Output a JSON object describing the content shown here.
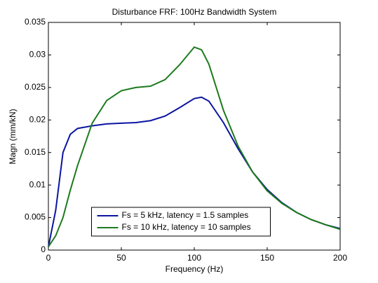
{
  "chart_data": {
    "type": "line",
    "title": "Disturbance FRF: 100Hz Bandwidth System",
    "x_label": "Frequency (Hz)",
    "y_label": "Magn (mm/kN)",
    "x": [
      0,
      5,
      10,
      15,
      20,
      30,
      40,
      50,
      60,
      70,
      80,
      90,
      100,
      105,
      110,
      120,
      130,
      140,
      150,
      160,
      170,
      180,
      190,
      200
    ],
    "series": [
      {
        "name": "Fs = 5 kHz, latency = 1.5 samples",
        "color": "#0a14a0",
        "values": [
          0.0005,
          0.0061,
          0.015,
          0.0178,
          0.0187,
          0.0191,
          0.0194,
          0.0195,
          0.0196,
          0.0199,
          0.0206,
          0.0219,
          0.0233,
          0.0235,
          0.0229,
          0.0196,
          0.0156,
          0.012,
          0.0093,
          0.0073,
          0.0058,
          0.0047,
          0.0039,
          0.0033
        ]
      },
      {
        "name": "Fs = 10 kHz, latency = 10 samples",
        "color": "#1d7a1d",
        "values": [
          0.0005,
          0.0022,
          0.005,
          0.0092,
          0.013,
          0.0195,
          0.023,
          0.0245,
          0.025,
          0.0252,
          0.0262,
          0.0285,
          0.0312,
          0.0308,
          0.0286,
          0.0215,
          0.016,
          0.012,
          0.0091,
          0.0072,
          0.0058,
          0.0047,
          0.0039,
          0.0032
        ]
      }
    ],
    "xlim": [
      0,
      200
    ],
    "xticks": [
      0,
      50,
      100,
      150,
      200
    ],
    "ylim": [
      0,
      0.035
    ],
    "yticks": [
      0,
      0.005,
      0.01,
      0.015,
      0.02,
      0.025,
      0.03,
      0.035
    ],
    "grid": false,
    "legend_loc": "lower center"
  }
}
